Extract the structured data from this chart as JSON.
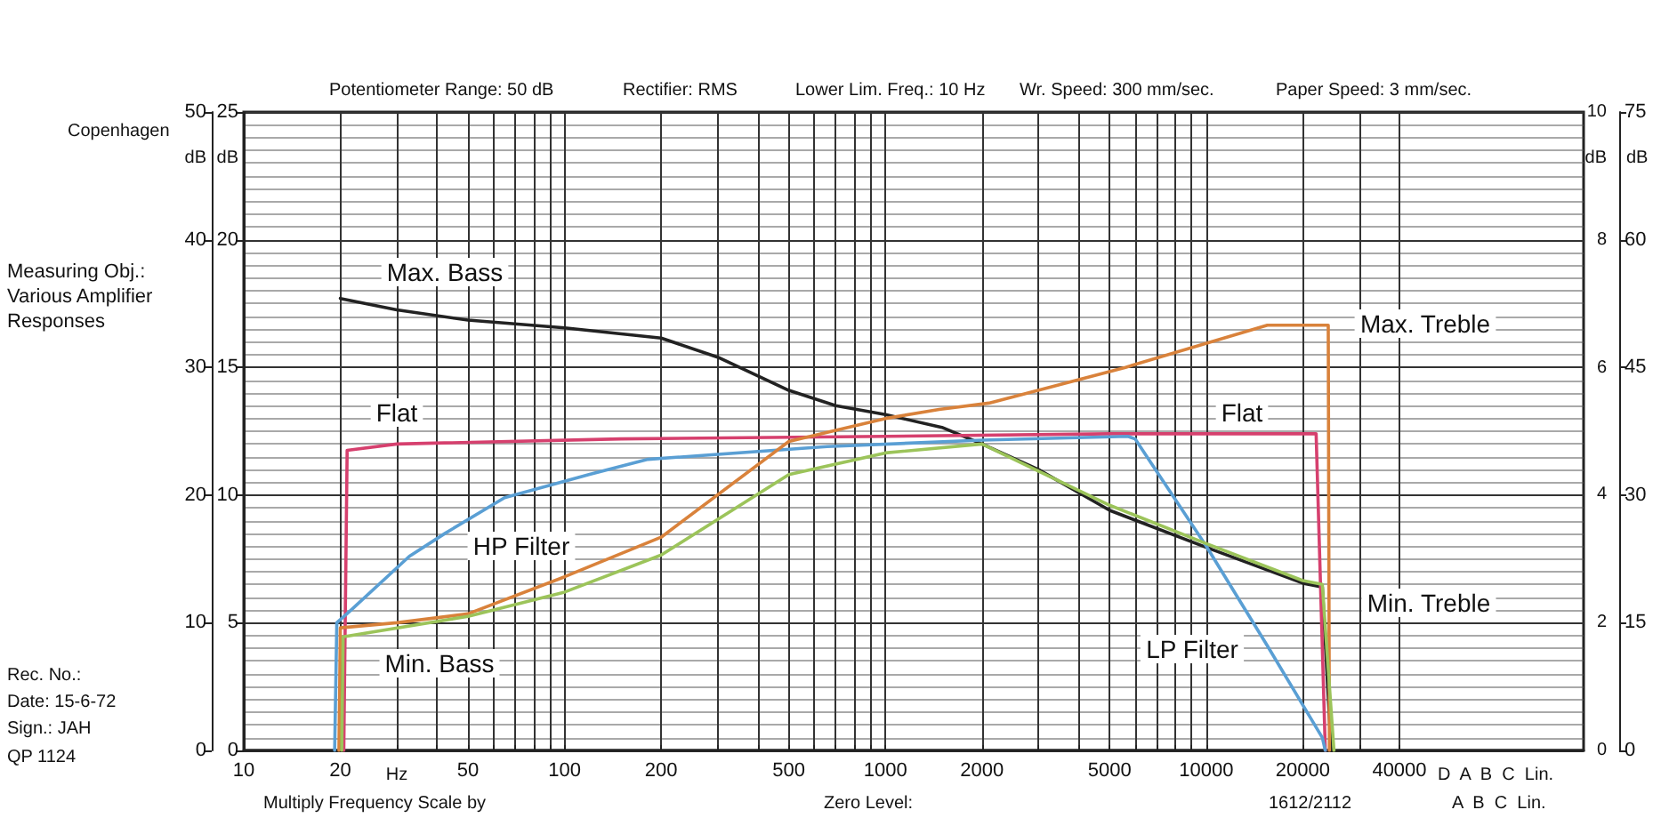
{
  "chart_data": {
    "type": "line",
    "xlabel": null,
    "series": [
      {
        "color": "#222222",
        "x": [
          20,
          30,
          50,
          100,
          200,
          300,
          500,
          700,
          1000,
          1500,
          2000,
          3000,
          5000,
          10000,
          20000,
          23000,
          24500
        ],
        "values": [
          35.4,
          34.5,
          33.7,
          33.1,
          32.3,
          30.8,
          28.2,
          27,
          26.3,
          25.3,
          24,
          22,
          18.8,
          15.9,
          13.1,
          12.8,
          0
        ]
      },
      {
        "color": "#d6406e",
        "x": [
          20.5,
          21,
          30,
          150,
          1000,
          5000,
          22000,
          23500
        ],
        "values": [
          0,
          23.5,
          24,
          24.4,
          24.6,
          24.8,
          24.8,
          0
        ]
      },
      {
        "color": "#5a9fd4",
        "x": [
          19.2,
          19.5,
          21.6,
          32.8,
          42.4,
          65,
          119,
          182,
          658,
          2000,
          5700,
          6000,
          10000,
          15500,
          23000,
          23500
        ],
        "values": [
          0,
          10,
          11,
          15.2,
          17,
          19.8,
          21.6,
          22.8,
          23.8,
          24.3,
          24.6,
          24.4,
          16,
          8.2,
          1,
          0
        ]
      },
      {
        "color": "#d9823b",
        "x": [
          19.8,
          20,
          30,
          50,
          100,
          200,
          500,
          1000,
          1470,
          2100,
          5600,
          15500,
          24000,
          24200
        ],
        "values": [
          0,
          9.6,
          10,
          10.7,
          13.6,
          16.7,
          24.2,
          26,
          26.7,
          27.2,
          30,
          33.3,
          33.3,
          0
        ]
      },
      {
        "color": "#9cc45a",
        "x": [
          20.2,
          20.4,
          50,
          100,
          200,
          500,
          1000,
          2000,
          5000,
          10000,
          20000,
          23000,
          25000
        ],
        "values": [
          0,
          8.9,
          10.5,
          12.4,
          15.3,
          21.6,
          23.3,
          24,
          19.2,
          16.2,
          13.3,
          13,
          0
        ]
      }
    ],
    "xlim": [
      10,
      150000
    ],
    "xticks": [
      10,
      20,
      {
        "value": 30,
        "label": null
      },
      {
        "value": 40,
        "label": null
      },
      50,
      {
        "value": 60,
        "label": null
      },
      {
        "value": 70,
        "label": null
      },
      {
        "value": 80,
        "label": null
      },
      {
        "value": 90,
        "label": null
      },
      100,
      200,
      {
        "value": 300,
        "label": null
      },
      {
        "value": 400,
        "label": null
      },
      500,
      {
        "value": 600,
        "label": null
      },
      {
        "value": 700,
        "label": null
      },
      {
        "value": 800,
        "label": null
      },
      {
        "value": 900,
        "label": null
      },
      1000,
      2000,
      {
        "value": 3000,
        "label": null
      },
      {
        "value": 4000,
        "label": null
      },
      5000,
      {
        "value": 6000,
        "label": null
      },
      {
        "value": 7000,
        "label": null
      },
      {
        "value": 8000,
        "label": null
      },
      {
        "value": 9000,
        "label": null
      },
      10000,
      20000,
      {
        "value": 30000,
        "label": null
      },
      40000
    ],
    "ylim": [
      0,
      50
    ],
    "yticks": [
      0,
      10,
      20,
      30,
      40,
      50
    ],
    "y3lim": [
      0,
      25
    ],
    "y3ticks": [
      0,
      5,
      10,
      15,
      20,
      25
    ],
    "y2lim": [
      0,
      75
    ],
    "y2ticks": [
      0,
      15,
      30,
      45,
      60,
      75
    ],
    "log": "x",
    "grid": true,
    "marker": "none",
    "line_style": "solid",
    "annotations": [
      "Potentiometer Range: 50 dB",
      "Rectifier: RMS",
      "Lower Lim. Freq.: 10 Hz",
      "Wr. Speed: 300 mm/sec.",
      "Paper Speed: 3 mm/sec.",
      "Copenhagen",
      "Measuring Obj.: Various Amplifier Responses",
      "Rec. No.:",
      "Date: 15-6-72",
      "Sign.: JAH",
      "QP 1124",
      "Hz",
      "Multiply Frequency Scale by",
      "Zero Level:",
      "1612/2112",
      "D  A  B  C  Lin.",
      "A  B  C  Lin.",
      "Max. Bass",
      "Flat",
      "HP Filter",
      "Min. Bass",
      "Max. Treble",
      "Flat",
      "Min. Treble",
      "LP Filter",
      "dB",
      "10",
      "8",
      "6",
      "4",
      "2",
      "0",
      "dB",
      "dB",
      "dB"
    ]
  }
}
